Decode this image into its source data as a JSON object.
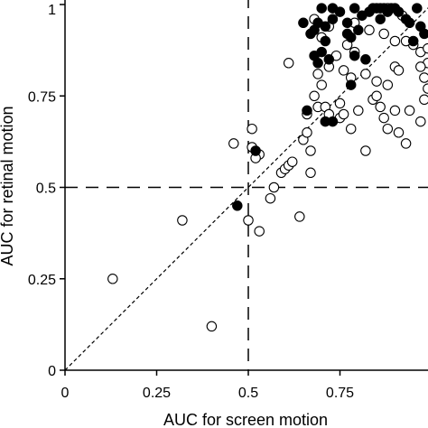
{
  "chart_data": {
    "type": "scatter",
    "title": "",
    "xlabel": "AUC for screen motion",
    "ylabel": "AUC for retinal motion",
    "xlim": [
      0,
      1
    ],
    "ylim": [
      0,
      1
    ],
    "x_ticks": [
      0,
      0.25,
      0.5,
      0.75
    ],
    "x_tick_labels": [
      "0",
      "0.25",
      "0.5",
      "0.75"
    ],
    "y_ticks": [
      0,
      0.25,
      0.5,
      0.75,
      1
    ],
    "y_tick_labels": [
      "0",
      "0.25",
      "0.5",
      "0.75",
      "1"
    ],
    "grid": false,
    "reference_lines": {
      "vertical_dashed_x": 0.5,
      "horizontal_dashed_y": 0.5,
      "diagonal_dotted": true
    },
    "colors": {
      "axis": "#000000",
      "open_marker_fill": "#ffffff",
      "filled_marker_fill": "#000000"
    },
    "series": [
      {
        "marker": "open-circle",
        "points": [
          [
            0.13,
            0.25
          ],
          [
            0.32,
            0.41
          ],
          [
            0.4,
            0.12
          ],
          [
            0.46,
            0.62
          ],
          [
            0.5,
            0.41
          ],
          [
            0.53,
            0.38
          ],
          [
            0.51,
            0.66
          ],
          [
            0.51,
            0.61
          ],
          [
            0.53,
            0.59
          ],
          [
            0.52,
            0.58
          ],
          [
            0.56,
            0.47
          ],
          [
            0.57,
            0.5
          ],
          [
            0.59,
            0.54
          ],
          [
            0.6,
            0.55
          ],
          [
            0.61,
            0.56
          ],
          [
            0.62,
            0.57
          ],
          [
            0.64,
            0.42
          ],
          [
            0.65,
            0.63
          ],
          [
            0.66,
            0.65
          ],
          [
            0.67,
            0.6
          ],
          [
            0.67,
            0.54
          ],
          [
            0.68,
            0.75
          ],
          [
            0.69,
            0.72
          ],
          [
            0.7,
            0.78
          ],
          [
            0.71,
            0.72
          ],
          [
            0.72,
            0.7
          ],
          [
            0.75,
            0.69
          ],
          [
            0.76,
            0.7
          ],
          [
            0.78,
            0.66
          ],
          [
            0.8,
            0.71
          ],
          [
            0.82,
            0.6
          ],
          [
            0.84,
            0.74
          ],
          [
            0.85,
            0.75
          ],
          [
            0.86,
            0.72
          ],
          [
            0.87,
            0.69
          ],
          [
            0.88,
            0.66
          ],
          [
            0.9,
            0.71
          ],
          [
            0.91,
            0.65
          ],
          [
            0.93,
            0.62
          ],
          [
            0.94,
            0.71
          ],
          [
            0.97,
            0.68
          ],
          [
            0.98,
            0.74
          ],
          [
            0.99,
            0.77
          ],
          [
            0.98,
            0.8
          ],
          [
            0.99,
            0.84
          ],
          [
            0.97,
            0.83
          ],
          [
            0.97,
            0.87
          ],
          [
            0.99,
            0.88
          ],
          [
            0.95,
            0.89
          ],
          [
            0.93,
            0.9
          ],
          [
            0.9,
            0.9
          ],
          [
            0.87,
            0.92
          ],
          [
            0.83,
            0.93
          ],
          [
            0.79,
            0.95
          ],
          [
            0.79,
            0.87
          ],
          [
            0.77,
            0.89
          ],
          [
            0.74,
            0.86
          ],
          [
            0.72,
            0.94
          ],
          [
            0.72,
            0.83
          ],
          [
            0.76,
            0.82
          ],
          [
            0.78,
            0.8
          ],
          [
            0.82,
            0.81
          ],
          [
            0.85,
            0.79
          ],
          [
            0.88,
            0.78
          ],
          [
            0.9,
            0.83
          ],
          [
            0.91,
            0.82
          ],
          [
            0.61,
            0.84
          ],
          [
            0.88,
            0.99
          ],
          [
            0.92,
            0.97
          ],
          [
            0.7,
            0.91
          ],
          [
            0.68,
            0.96
          ],
          [
            0.75,
            0.73
          ],
          [
            0.69,
            0.81
          ],
          [
            0.66,
            0.7
          ]
        ]
      },
      {
        "marker": "filled-circle",
        "points": [
          [
            0.47,
            0.45
          ],
          [
            0.52,
            0.6
          ],
          [
            0.66,
            0.71
          ],
          [
            0.71,
            0.68
          ],
          [
            0.73,
            0.68
          ],
          [
            0.72,
            0.85
          ],
          [
            0.69,
            0.84
          ],
          [
            0.68,
            0.86
          ],
          [
            0.7,
            0.87
          ],
          [
            0.71,
            0.9
          ],
          [
            0.67,
            0.92
          ],
          [
            0.68,
            0.93
          ],
          [
            0.65,
            0.95
          ],
          [
            0.69,
            0.95
          ],
          [
            0.71,
            0.94
          ],
          [
            0.73,
            0.96
          ],
          [
            0.7,
            0.99
          ],
          [
            0.73,
            0.99
          ],
          [
            0.75,
            0.98
          ],
          [
            0.77,
            0.95
          ],
          [
            0.79,
            0.99
          ],
          [
            0.81,
            0.97
          ],
          [
            0.83,
            0.98
          ],
          [
            0.84,
            0.99
          ],
          [
            0.85,
            0.99
          ],
          [
            0.86,
            0.99
          ],
          [
            0.87,
            0.99
          ],
          [
            0.88,
            0.98
          ],
          [
            0.89,
            0.99
          ],
          [
            0.9,
            0.99
          ],
          [
            0.91,
            0.98
          ],
          [
            0.93,
            0.96
          ],
          [
            0.94,
            0.95
          ],
          [
            0.96,
            0.99
          ],
          [
            0.97,
            0.94
          ],
          [
            0.98,
            0.92
          ],
          [
            0.95,
            0.9
          ],
          [
            0.77,
            0.92
          ],
          [
            0.78,
            0.91
          ],
          [
            0.79,
            0.86
          ],
          [
            0.8,
            0.93
          ],
          [
            0.82,
            0.85
          ],
          [
            0.78,
            0.78
          ],
          [
            0.86,
            0.96
          ]
        ]
      }
    ]
  }
}
